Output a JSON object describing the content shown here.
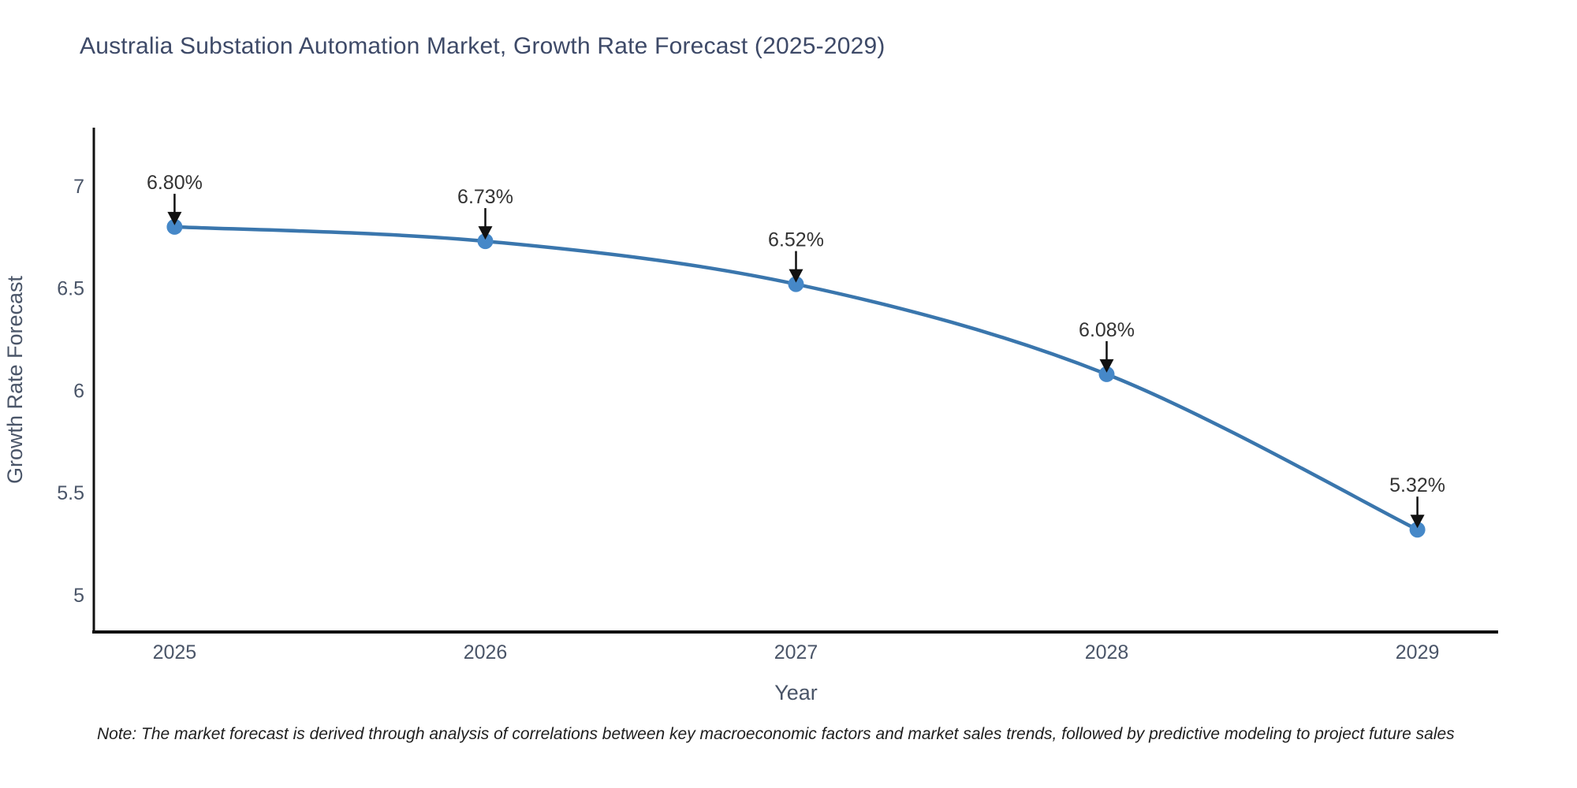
{
  "title": "Australia Substation Automation Market, Growth Rate Forecast (2025-2029)",
  "note": "Note: The market forecast is derived through analysis of correlations between key macroeconomic factors and market sales trends, followed by predictive modeling to project future sales",
  "colors": {
    "line": "#3a76ad",
    "marker": "#4688c8",
    "axis": "#111111",
    "title_text": "#3e4a68",
    "tick_text": "#4a5568",
    "annotation_text": "#333333",
    "arrow": "#111111",
    "note_text": "#1f1f1f",
    "background": "#ffffff"
  },
  "chart_data": {
    "type": "line",
    "title": "Australia Substation Automation Market, Growth Rate Forecast (2025-2029)",
    "x": [
      2025,
      2026,
      2027,
      2028,
      2029
    ],
    "values": [
      6.8,
      6.73,
      6.52,
      6.08,
      5.32
    ],
    "point_labels": [
      "6.80%",
      "6.73%",
      "6.52%",
      "6.08%",
      "5.32%"
    ],
    "xlabel": "Year",
    "ylabel": "Growth Rate Forecast",
    "xticks": [
      "2025",
      "2026",
      "2027",
      "2028",
      "2029"
    ],
    "ytick_values": [
      5,
      5.5,
      6,
      6.5,
      7
    ],
    "ytick_labels": [
      "5",
      "5.5",
      "6",
      "6.5",
      "7"
    ],
    "xlim": [
      2024.74,
      2029.26
    ],
    "ylim": [
      4.82,
      7.285
    ],
    "grid": false,
    "legend": false,
    "line_shape": "spline",
    "markers": true,
    "annotation_arrows": true
  }
}
